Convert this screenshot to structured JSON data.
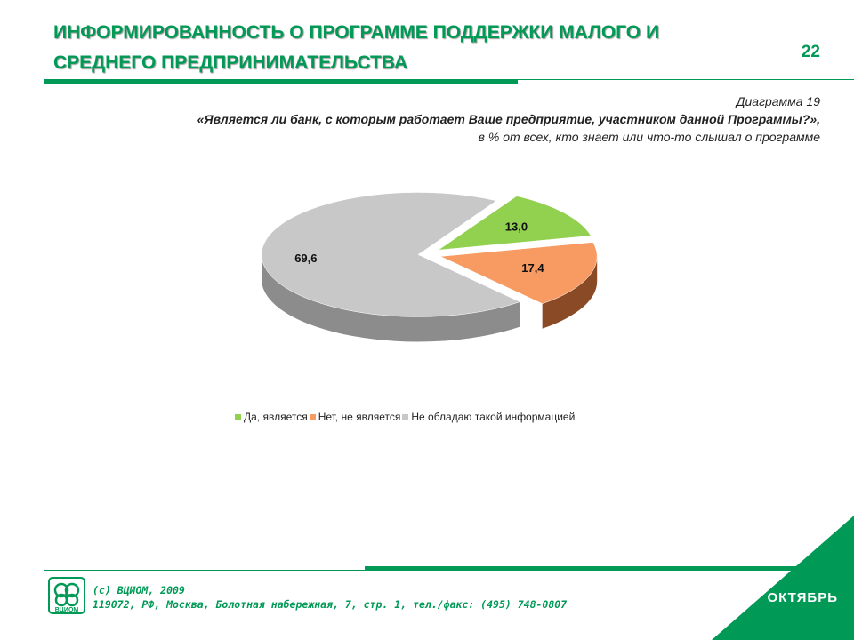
{
  "header": {
    "title": "ИНФОРМИРОВАННОСТЬ О ПРОГРАММЕ ПОДДЕРЖКИ МАЛОГО И СРЕДНЕГО ПРЕДПРИНИМАТЕЛЬСТВА",
    "slide_number": "22"
  },
  "caption": {
    "diagram_number": "Диаграмма 19",
    "question": "«Является ли банк, с которым работает Ваше предприятие, участником данной Программы?»,",
    "base": "в % от всех, кто знает или что-то слышал о программе"
  },
  "chart_data": {
    "type": "pie",
    "style": "3d-exploded",
    "title": "",
    "legend_position": "bottom",
    "slices": [
      {
        "label": "Да, является",
        "value": 13.0,
        "display": "13,0",
        "color": "#92d050",
        "side_color": "#5f8f2a"
      },
      {
        "label": "Нет, не является",
        "value": 17.4,
        "display": "17,4",
        "color": "#f79b62",
        "side_color": "#8a4a26"
      },
      {
        "label": "Не обладаю такой информацией",
        "value": 69.6,
        "display": "69,6",
        "color": "#c8c8c8",
        "side_color": "#8c8c8c"
      }
    ]
  },
  "footer": {
    "copyright": "(с) ВЦИОМ, 2009",
    "address": "119072, РФ, Москва, Болотная набережная, 7, стр. 1, тел./факс: (495) 748-0807",
    "logo_text": "ВЦИОМ",
    "corner_label": "ОКТЯБРЬ"
  },
  "colors": {
    "brand_green": "#009a56"
  }
}
